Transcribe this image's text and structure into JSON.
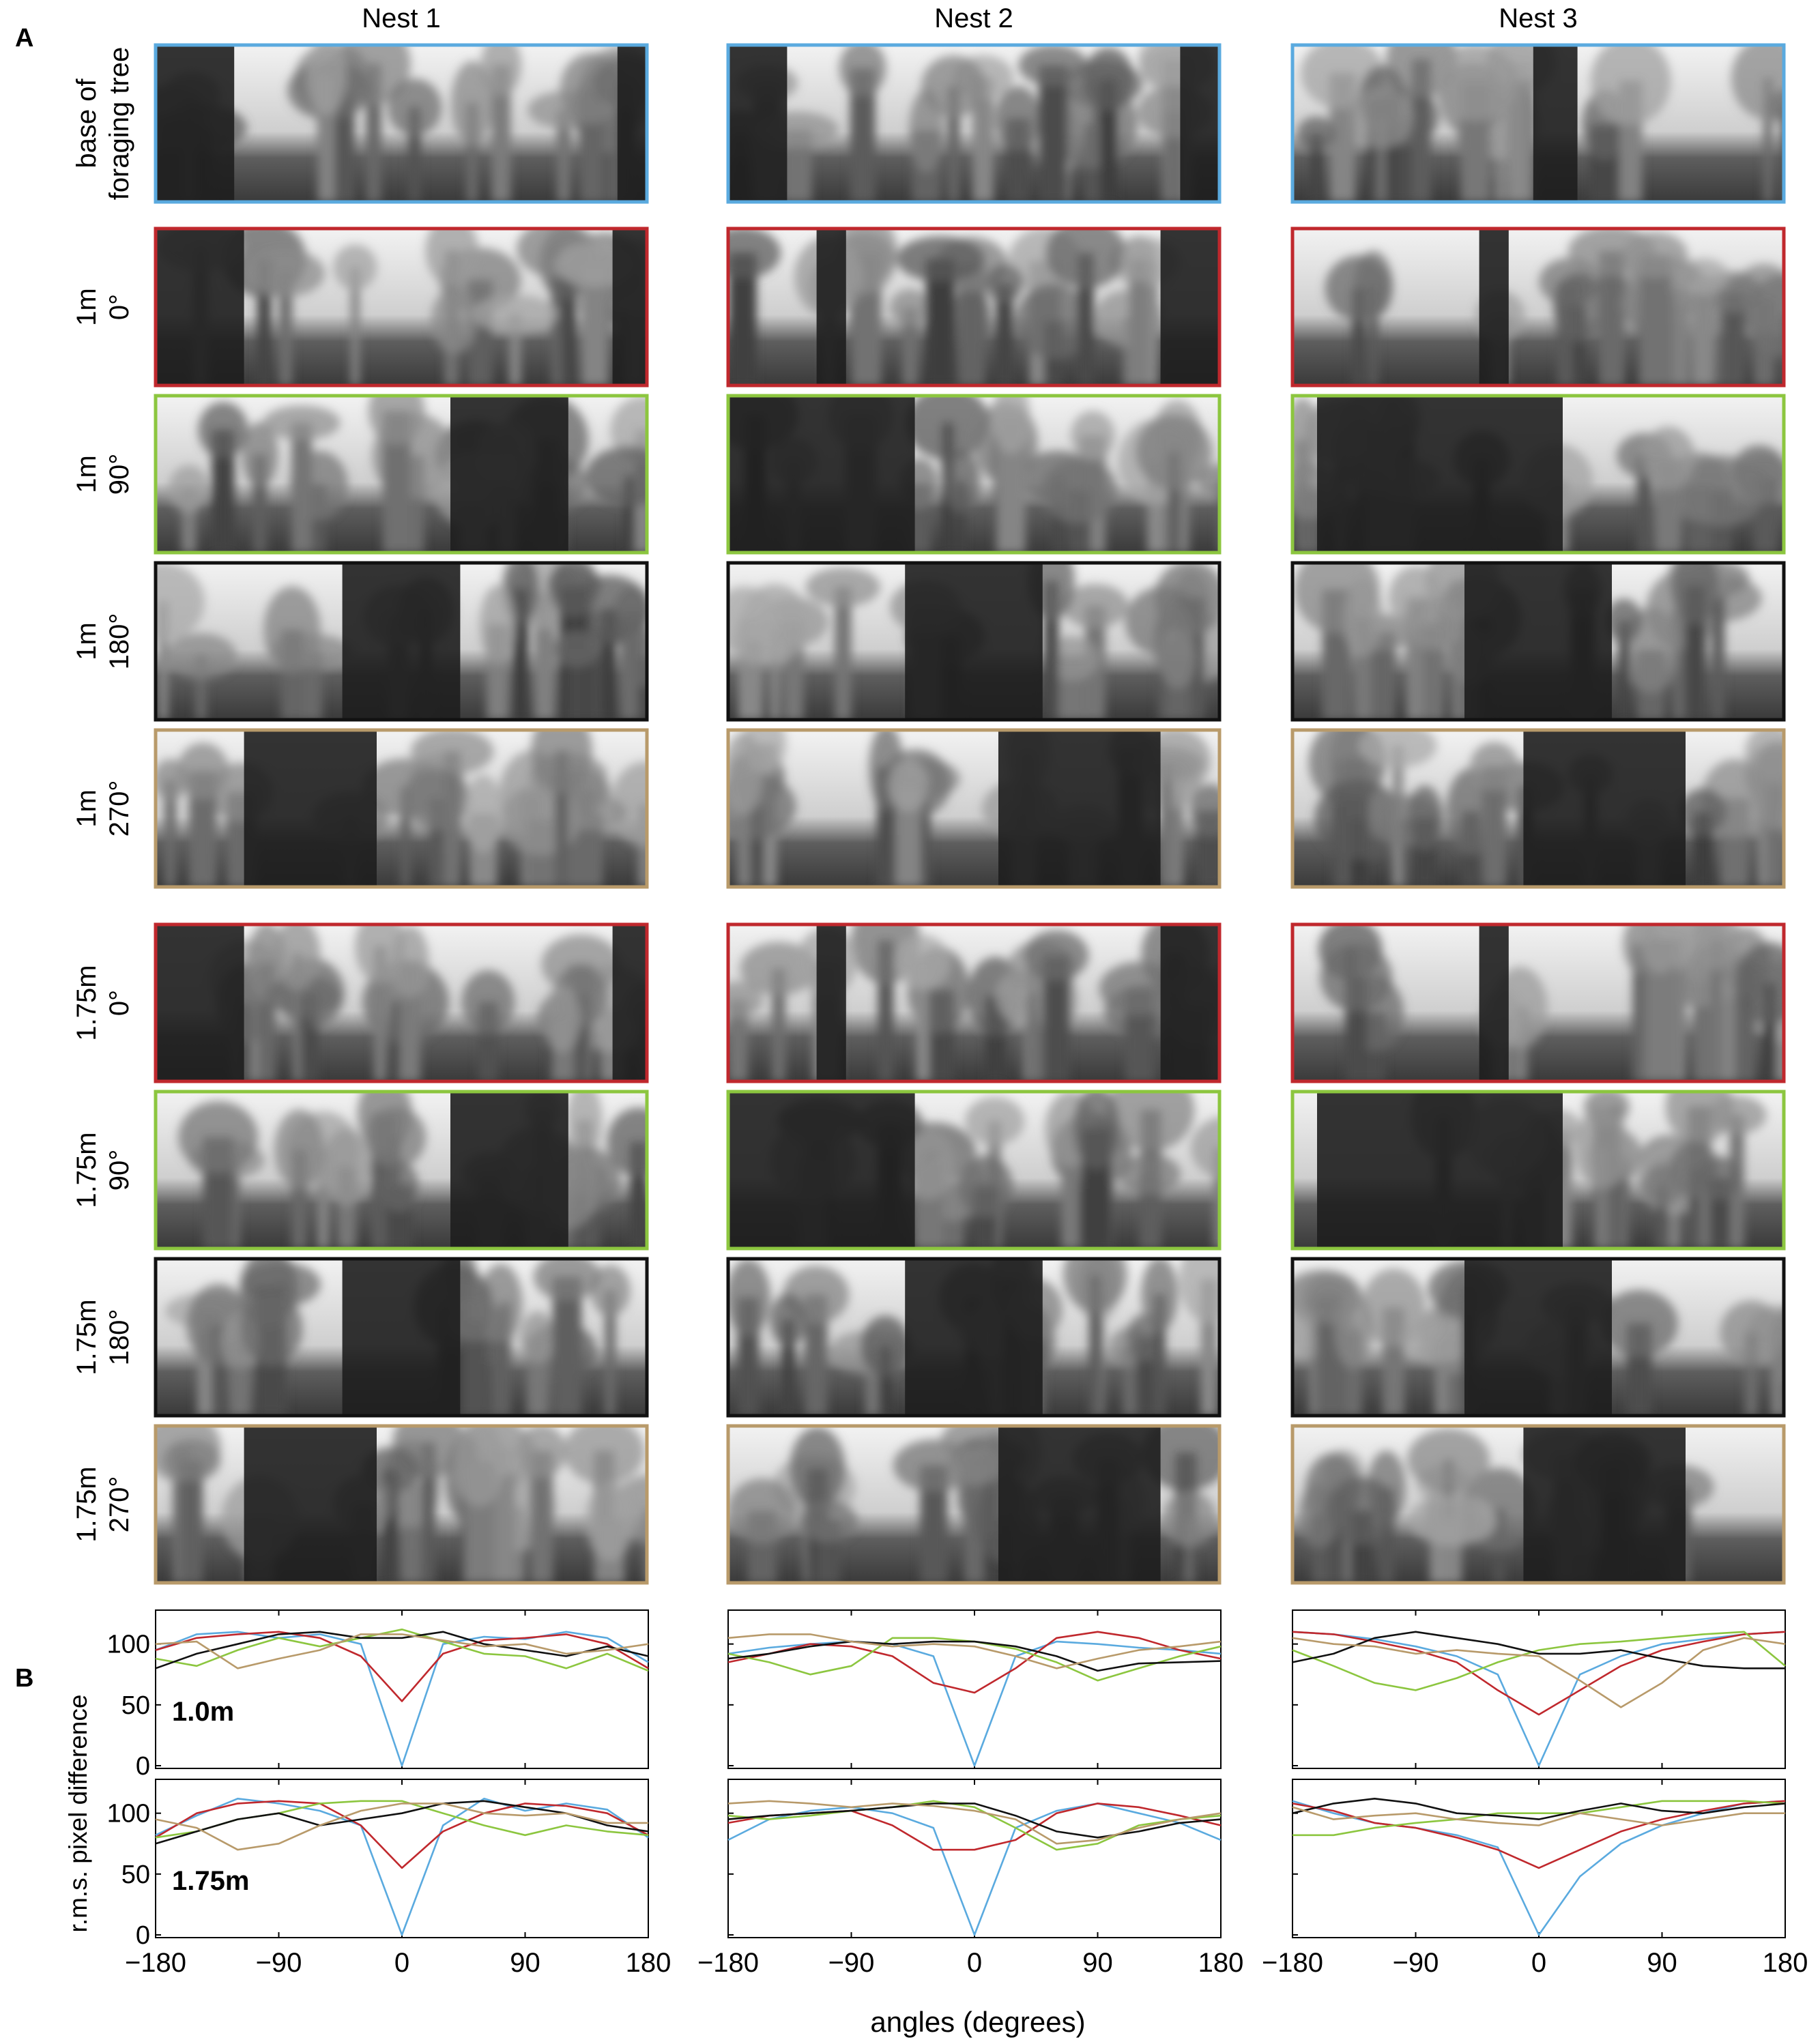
{
  "panel_a_letter": "A",
  "panel_b_letter": "B",
  "columns": [
    "Nest 1",
    "Nest 2",
    "Nest 3"
  ],
  "rows": [
    {
      "lines": [
        "base of",
        "foraging tree"
      ],
      "color": "#5aaadf",
      "kind": "base"
    },
    {
      "lines": [
        "1m",
        "0°"
      ],
      "color": "#c0282d",
      "kind": "0"
    },
    {
      "lines": [
        "1m",
        "90°"
      ],
      "color": "#8cc63f",
      "kind": "90"
    },
    {
      "lines": [
        "1m",
        "180°"
      ],
      "color": "#111111",
      "kind": "180"
    },
    {
      "lines": [
        "1m",
        "270°"
      ],
      "color": "#b89a6a",
      "kind": "270"
    },
    {
      "lines": [
        "1.75m",
        "0°"
      ],
      "color": "#c0282d",
      "kind": "0"
    },
    {
      "lines": [
        "1.75m",
        "90°"
      ],
      "color": "#8cc63f",
      "kind": "90"
    },
    {
      "lines": [
        "1.75m",
        "180°"
      ],
      "color": "#111111",
      "kind": "180"
    },
    {
      "lines": [
        "1.75m",
        "270°"
      ],
      "color": "#b89a6a",
      "kind": "270"
    }
  ],
  "chart_data": [
    {
      "type": "line",
      "nest": "Nest 1",
      "distance_label": "1.0m",
      "x": [
        -180,
        -150,
        -120,
        -90,
        -60,
        -30,
        0,
        30,
        60,
        90,
        120,
        150,
        180
      ],
      "xlim": [
        -180,
        180
      ],
      "ylim": [
        0,
        120
      ],
      "series": [
        {
          "color": "#5aaadf",
          "values": [
            95,
            108,
            110,
            105,
            108,
            100,
            0,
            100,
            106,
            104,
            110,
            105,
            85
          ]
        },
        {
          "color": "#c0282d",
          "values": [
            95,
            105,
            108,
            110,
            105,
            90,
            53,
            92,
            103,
            105,
            108,
            100,
            80
          ]
        },
        {
          "color": "#8cc63f",
          "values": [
            88,
            82,
            95,
            105,
            98,
            105,
            112,
            102,
            92,
            90,
            80,
            92,
            78
          ]
        },
        {
          "color": "#111111",
          "values": [
            80,
            92,
            100,
            108,
            110,
            105,
            105,
            110,
            100,
            95,
            90,
            98,
            90
          ]
        },
        {
          "color": "#b89a6a",
          "values": [
            100,
            102,
            80,
            88,
            95,
            108,
            108,
            103,
            98,
            100,
            92,
            95,
            100
          ]
        }
      ]
    },
    {
      "type": "line",
      "nest": "Nest 2",
      "distance_label": "",
      "x": [
        -180,
        -150,
        -120,
        -90,
        -60,
        -30,
        0,
        30,
        60,
        90,
        120,
        150,
        180
      ],
      "xlim": [
        -180,
        180
      ],
      "ylim": [
        0,
        120
      ],
      "series": [
        {
          "color": "#5aaadf",
          "values": [
            92,
            97,
            100,
            102,
            100,
            90,
            0,
            90,
            102,
            100,
            97,
            95,
            92
          ]
        },
        {
          "color": "#c0282d",
          "values": [
            85,
            92,
            100,
            98,
            90,
            68,
            60,
            80,
            105,
            110,
            105,
            95,
            88
          ]
        },
        {
          "color": "#8cc63f",
          "values": [
            92,
            85,
            75,
            82,
            105,
            105,
            102,
            96,
            85,
            70,
            80,
            90,
            98
          ]
        },
        {
          "color": "#111111",
          "values": [
            88,
            92,
            98,
            102,
            100,
            102,
            102,
            98,
            90,
            78,
            84,
            85,
            86
          ]
        },
        {
          "color": "#b89a6a",
          "values": [
            105,
            108,
            108,
            102,
            98,
            100,
            98,
            90,
            80,
            88,
            95,
            98,
            102
          ]
        }
      ]
    },
    {
      "type": "line",
      "nest": "Nest 3",
      "distance_label": "",
      "x": [
        -180,
        -150,
        -120,
        -90,
        -60,
        -30,
        0,
        30,
        60,
        90,
        120,
        150,
        180
      ],
      "xlim": [
        -180,
        180
      ],
      "ylim": [
        0,
        120
      ],
      "series": [
        {
          "color": "#5aaadf",
          "values": [
            110,
            108,
            104,
            98,
            90,
            75,
            0,
            75,
            90,
            100,
            104,
            108,
            110
          ]
        },
        {
          "color": "#c0282d",
          "values": [
            110,
            108,
            102,
            95,
            85,
            62,
            42,
            62,
            82,
            95,
            102,
            108,
            110
          ]
        },
        {
          "color": "#8cc63f",
          "values": [
            95,
            82,
            68,
            62,
            72,
            85,
            95,
            100,
            102,
            105,
            108,
            110,
            82
          ]
        },
        {
          "color": "#111111",
          "values": [
            85,
            92,
            105,
            110,
            105,
            100,
            92,
            92,
            95,
            88,
            82,
            80,
            80
          ]
        },
        {
          "color": "#b89a6a",
          "values": [
            105,
            100,
            98,
            92,
            95,
            92,
            90,
            70,
            48,
            68,
            95,
            105,
            100
          ]
        }
      ]
    },
    {
      "type": "line",
      "nest": "Nest 1",
      "distance_label": "1.75m",
      "x": [
        -180,
        -150,
        -120,
        -90,
        -60,
        -30,
        0,
        30,
        60,
        90,
        120,
        150,
        180
      ],
      "xlim": [
        -180,
        180
      ],
      "ylim": [
        0,
        120
      ],
      "series": [
        {
          "color": "#5aaadf",
          "values": [
            82,
            98,
            112,
            108,
            102,
            90,
            0,
            90,
            112,
            102,
            108,
            103,
            80
          ]
        },
        {
          "color": "#c0282d",
          "values": [
            80,
            100,
            108,
            110,
            108,
            90,
            55,
            85,
            100,
            108,
            106,
            100,
            82
          ]
        },
        {
          "color": "#8cc63f",
          "values": [
            80,
            85,
            95,
            100,
            108,
            110,
            110,
            100,
            90,
            82,
            90,
            85,
            82
          ]
        },
        {
          "color": "#111111",
          "values": [
            75,
            85,
            95,
            100,
            90,
            95,
            100,
            108,
            110,
            105,
            100,
            90,
            85
          ]
        },
        {
          "color": "#b89a6a",
          "values": [
            95,
            88,
            70,
            75,
            90,
            102,
            108,
            108,
            100,
            98,
            100,
            92,
            92
          ]
        }
      ]
    },
    {
      "type": "line",
      "nest": "Nest 2",
      "distance_label": "",
      "x": [
        -180,
        -150,
        -120,
        -90,
        -60,
        -30,
        0,
        30,
        60,
        90,
        120,
        150,
        180
      ],
      "xlim": [
        -180,
        180
      ],
      "ylim": [
        0,
        120
      ],
      "series": [
        {
          "color": "#5aaadf",
          "values": [
            78,
            95,
            102,
            105,
            100,
            88,
            0,
            88,
            102,
            108,
            100,
            92,
            78
          ]
        },
        {
          "color": "#c0282d",
          "values": [
            92,
            98,
            100,
            102,
            90,
            70,
            70,
            78,
            100,
            108,
            105,
            98,
            90
          ]
        },
        {
          "color": "#8cc63f",
          "values": [
            98,
            95,
            98,
            102,
            105,
            110,
            105,
            88,
            70,
            75,
            90,
            95,
            98
          ]
        },
        {
          "color": "#111111",
          "values": [
            95,
            98,
            100,
            102,
            105,
            108,
            108,
            98,
            85,
            80,
            85,
            92,
            95
          ]
        },
        {
          "color": "#b89a6a",
          "values": [
            108,
            110,
            108,
            105,
            108,
            106,
            102,
            95,
            75,
            78,
            88,
            95,
            100
          ]
        }
      ]
    },
    {
      "type": "line",
      "nest": "Nest 3",
      "distance_label": "",
      "x": [
        -180,
        -150,
        -120,
        -90,
        -60,
        -30,
        0,
        30,
        60,
        90,
        120,
        150,
        180
      ],
      "xlim": [
        -180,
        180
      ],
      "ylim": [
        0,
        120
      ],
      "series": [
        {
          "color": "#5aaadf",
          "values": [
            110,
            100,
            92,
            88,
            82,
            72,
            0,
            48,
            75,
            90,
            100,
            108,
            110
          ]
        },
        {
          "color": "#c0282d",
          "values": [
            108,
            102,
            92,
            88,
            80,
            70,
            55,
            70,
            85,
            95,
            102,
            108,
            110
          ]
        },
        {
          "color": "#8cc63f",
          "values": [
            82,
            82,
            88,
            92,
            95,
            100,
            100,
            100,
            105,
            110,
            110,
            110,
            108
          ]
        },
        {
          "color": "#111111",
          "values": [
            100,
            108,
            112,
            108,
            100,
            98,
            95,
            102,
            108,
            102,
            100,
            105,
            108
          ]
        },
        {
          "color": "#b89a6a",
          "values": [
            105,
            95,
            98,
            100,
            95,
            92,
            90,
            100,
            95,
            90,
            95,
            100,
            100
          ]
        }
      ]
    }
  ],
  "axes": {
    "x_ticks": [
      "−180",
      "−90",
      "0",
      "90",
      "180"
    ],
    "y_ticks": [
      "0",
      "50",
      "100"
    ],
    "ylabel": "r.m.s. pixel difference",
    "xlabel": "angles (degrees)"
  }
}
